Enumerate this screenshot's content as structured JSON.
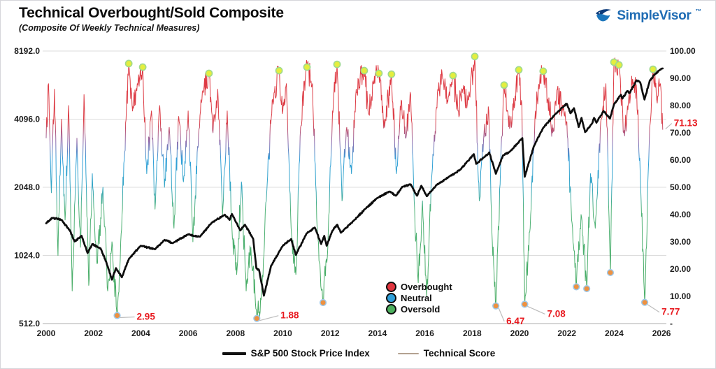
{
  "header": {
    "title": "Technical Overbought/Sold Composite",
    "subtitle": "(Composite Of Weekly Technical Measures)",
    "brand": {
      "name": "SimpleVisor",
      "tm": "™",
      "color": "#1f6cb4"
    }
  },
  "legend": {
    "zones": [
      {
        "label": "Overbought",
        "color": "#e0353f"
      },
      {
        "label": "Neutral",
        "color": "#2f9fd9"
      },
      {
        "label": "Oversold",
        "color": "#4db05e"
      }
    ],
    "series": [
      {
        "label": "S&P 500 Stock Price Index",
        "color": "#111111",
        "weight": "thick"
      },
      {
        "label": "Technical Score",
        "color": "#b3a291",
        "weight": "thin"
      }
    ]
  },
  "chart_data": {
    "type": "line",
    "title": "Technical Overbought/Sold Composite",
    "subtitle": "(Composite Of Weekly Technical Measures)",
    "grid": "horizontal",
    "x_axis": {
      "ticks": [
        2000,
        2002,
        2004,
        2006,
        2008,
        2010,
        2012,
        2014,
        2016,
        2018,
        2020,
        2022,
        2024,
        2026
      ],
      "range": [
        2000,
        2026.3
      ]
    },
    "y_left_axis": {
      "scale": "log2",
      "ticks": [
        [
          "8192.0",
          8192
        ],
        [
          "4096.0",
          4096
        ],
        [
          "2048.0",
          2048
        ],
        [
          "1024.0",
          1024
        ],
        [
          "512.0",
          512
        ]
      ]
    },
    "y_right_axis": {
      "scale": "linear",
      "range": [
        0,
        100
      ],
      "ticks": [
        [
          "100.00",
          100
        ],
        [
          "90.00",
          90
        ],
        [
          "80.00",
          80
        ],
        [
          "70.00",
          70
        ],
        [
          "60.00",
          60
        ],
        [
          "50.00",
          50
        ],
        [
          "40.00",
          40
        ],
        [
          "30.00",
          30
        ],
        [
          "20.00",
          20
        ],
        [
          "10.00",
          10
        ],
        [
          "-",
          0
        ]
      ]
    },
    "current_score": {
      "value": 71.13,
      "label": "71.13",
      "color": "#e8191f"
    },
    "colors": {
      "overbought": "#e0353f",
      "neutral": "#2f9fd9",
      "oversold": "#43a95c",
      "purple_blend": "#8a6cae",
      "teal_blend": "#35a6c4",
      "sp500": "#0d0d0d",
      "grid": "#dcdcdc",
      "axis_text": "#1c1c1c",
      "annotation": "#e8191f",
      "callout": "#bdbdbd",
      "peak_marker_fill": "#e4ee3e",
      "peak_marker_ring": "#9fd98f",
      "trough_marker_fill": "#ee9140",
      "trough_marker_ring": "#9fc8e8"
    },
    "sp500_keypoints": [
      [
        2000.0,
        1420
      ],
      [
        2000.25,
        1500
      ],
      [
        2000.65,
        1470
      ],
      [
        2001.0,
        1320
      ],
      [
        2001.2,
        1180
      ],
      [
        2001.5,
        1250
      ],
      [
        2001.75,
        1050
      ],
      [
        2001.95,
        1150
      ],
      [
        2002.3,
        1100
      ],
      [
        2002.55,
        950
      ],
      [
        2002.78,
        800
      ],
      [
        2002.95,
        900
      ],
      [
        2003.2,
        820
      ],
      [
        2003.5,
        990
      ],
      [
        2004.0,
        1130
      ],
      [
        2004.6,
        1090
      ],
      [
        2005.0,
        1200
      ],
      [
        2005.35,
        1160
      ],
      [
        2006.0,
        1270
      ],
      [
        2006.5,
        1240
      ],
      [
        2007.0,
        1430
      ],
      [
        2007.55,
        1550
      ],
      [
        2007.75,
        1470
      ],
      [
        2007.85,
        1560
      ],
      [
        2008.2,
        1320
      ],
      [
        2008.4,
        1400
      ],
      [
        2008.75,
        1210
      ],
      [
        2008.88,
        900
      ],
      [
        2009.0,
        880
      ],
      [
        2009.2,
        680
      ],
      [
        2009.5,
        920
      ],
      [
        2010.0,
        1130
      ],
      [
        2010.35,
        1210
      ],
      [
        2010.55,
        1030
      ],
      [
        2011.0,
        1280
      ],
      [
        2011.35,
        1360
      ],
      [
        2011.62,
        1150
      ],
      [
        2011.75,
        1250
      ],
      [
        2011.85,
        1130
      ],
      [
        2012.1,
        1320
      ],
      [
        2012.3,
        1400
      ],
      [
        2012.45,
        1290
      ],
      [
        2013.0,
        1460
      ],
      [
        2013.5,
        1650
      ],
      [
        2014.0,
        1840
      ],
      [
        2014.5,
        1960
      ],
      [
        2014.78,
        1880
      ],
      [
        2015.05,
        2060
      ],
      [
        2015.4,
        2110
      ],
      [
        2015.67,
        1880
      ],
      [
        2015.85,
        2080
      ],
      [
        2016.08,
        1870
      ],
      [
        2016.5,
        2100
      ],
      [
        2017.0,
        2270
      ],
      [
        2017.5,
        2450
      ],
      [
        2018.07,
        2870
      ],
      [
        2018.17,
        2600
      ],
      [
        2018.5,
        2780
      ],
      [
        2018.72,
        2920
      ],
      [
        2019.0,
        2350
      ],
      [
        2019.3,
        2830
      ],
      [
        2019.6,
        2950
      ],
      [
        2020.12,
        3380
      ],
      [
        2020.22,
        2280
      ],
      [
        2020.6,
        3100
      ],
      [
        2021.0,
        3750
      ],
      [
        2021.5,
        4300
      ],
      [
        2021.9,
        4700
      ],
      [
        2022.0,
        4790
      ],
      [
        2022.15,
        4350
      ],
      [
        2022.3,
        4580
      ],
      [
        2022.5,
        3780
      ],
      [
        2022.62,
        4150
      ],
      [
        2022.77,
        3590
      ],
      [
        2023.05,
        3900
      ],
      [
        2023.15,
        4150
      ],
      [
        2023.25,
        3950
      ],
      [
        2023.55,
        4450
      ],
      [
        2023.82,
        4120
      ],
      [
        2024.0,
        4780
      ],
      [
        2024.28,
        5250
      ],
      [
        2024.35,
        5050
      ],
      [
        2024.55,
        5450
      ],
      [
        2024.65,
        5350
      ],
      [
        2024.95,
        6080
      ],
      [
        2025.1,
        5950
      ],
      [
        2025.28,
        5000
      ],
      [
        2025.5,
        6050
      ],
      [
        2025.7,
        6450
      ],
      [
        2025.9,
        6720
      ],
      [
        2026.05,
        6860
      ]
    ],
    "score_anchors": [
      [
        2000.0,
        68,
        0
      ],
      [
        2000.1,
        88,
        0
      ],
      [
        2000.22,
        48,
        0
      ],
      [
        2000.35,
        86,
        0
      ],
      [
        2000.5,
        25,
        0
      ],
      [
        2000.65,
        75,
        0
      ],
      [
        2000.8,
        38,
        0
      ],
      [
        2000.95,
        80,
        0
      ],
      [
        2001.1,
        12,
        0
      ],
      [
        2001.3,
        68,
        0
      ],
      [
        2001.45,
        28,
        0
      ],
      [
        2001.6,
        84,
        0
      ],
      [
        2001.8,
        14,
        0
      ],
      [
        2001.95,
        55,
        0
      ],
      [
        2002.15,
        22,
        0
      ],
      [
        2002.4,
        50,
        0
      ],
      [
        2002.6,
        12,
        0
      ],
      [
        2002.78,
        30,
        0
      ],
      [
        2003.0,
        2.95,
        2,
        "2.95",
        28,
        6
      ],
      [
        2003.15,
        30,
        0
      ],
      [
        2003.3,
        60,
        0
      ],
      [
        2003.49,
        95.4,
        1
      ],
      [
        2003.65,
        78,
        0
      ],
      [
        2003.85,
        88,
        0
      ],
      [
        2004.08,
        94.1,
        1
      ],
      [
        2004.25,
        55,
        0
      ],
      [
        2004.45,
        78,
        0
      ],
      [
        2004.6,
        42,
        0
      ],
      [
        2004.8,
        80,
        0
      ],
      [
        2005.0,
        50,
        0
      ],
      [
        2005.2,
        72,
        0
      ],
      [
        2005.4,
        35,
        0
      ],
      [
        2005.6,
        76,
        0
      ],
      [
        2005.8,
        52,
        0
      ],
      [
        2006.0,
        78,
        0
      ],
      [
        2006.2,
        30,
        0
      ],
      [
        2006.4,
        65,
        0
      ],
      [
        2006.6,
        85,
        0
      ],
      [
        2006.88,
        91.8,
        1
      ],
      [
        2007.05,
        70,
        0
      ],
      [
        2007.25,
        86,
        0
      ],
      [
        2007.45,
        40,
        0
      ],
      [
        2007.65,
        78,
        0
      ],
      [
        2007.85,
        35,
        0
      ],
      [
        2008.05,
        18,
        0
      ],
      [
        2008.25,
        52,
        0
      ],
      [
        2008.45,
        12,
        0
      ],
      [
        2008.65,
        28,
        0
      ],
      [
        2008.9,
        1.88,
        2,
        "1.88",
        34,
        0
      ],
      [
        2009.1,
        12,
        0
      ],
      [
        2009.3,
        45,
        0
      ],
      [
        2009.55,
        82,
        0
      ],
      [
        2009.84,
        92.8,
        1
      ],
      [
        2010.0,
        78,
        0
      ],
      [
        2010.15,
        88,
        0
      ],
      [
        2010.35,
        35,
        0
      ],
      [
        2010.55,
        18,
        0
      ],
      [
        2010.75,
        72,
        0
      ],
      [
        2010.95,
        90,
        0
      ],
      [
        2011.02,
        94.1,
        1
      ],
      [
        2011.25,
        88,
        0
      ],
      [
        2011.45,
        35,
        0
      ],
      [
        2011.7,
        7.7,
        2
      ],
      [
        2011.9,
        28,
        0
      ],
      [
        2012.1,
        78,
        0
      ],
      [
        2012.29,
        95.1,
        1
      ],
      [
        2012.5,
        45,
        0
      ],
      [
        2012.7,
        72,
        0
      ],
      [
        2012.9,
        55,
        0
      ],
      [
        2013.1,
        86,
        0
      ],
      [
        2013.44,
        92.8,
        1
      ],
      [
        2013.6,
        78,
        0
      ],
      [
        2013.85,
        88,
        0
      ],
      [
        2014.06,
        91.8,
        1
      ],
      [
        2014.3,
        72,
        0
      ],
      [
        2014.59,
        91.5,
        1
      ],
      [
        2014.8,
        55,
        0
      ],
      [
        2015.0,
        82,
        0
      ],
      [
        2015.2,
        68,
        0
      ],
      [
        2015.4,
        84,
        0
      ],
      [
        2015.55,
        45,
        0
      ],
      [
        2015.72,
        15,
        0
      ],
      [
        2015.9,
        45,
        0
      ],
      [
        2016.08,
        10,
        0
      ],
      [
        2016.3,
        55,
        0
      ],
      [
        2016.55,
        86,
        0
      ],
      [
        2016.75,
        90,
        0
      ],
      [
        2016.95,
        82,
        0
      ],
      [
        2017.19,
        91,
        1
      ],
      [
        2017.4,
        78,
        0
      ],
      [
        2017.6,
        86,
        0
      ],
      [
        2017.85,
        82,
        0
      ],
      [
        2018.11,
        98,
        1
      ],
      [
        2018.3,
        45,
        0
      ],
      [
        2018.5,
        70,
        0
      ],
      [
        2018.7,
        78,
        0
      ],
      [
        2018.85,
        30,
        0
      ],
      [
        2019.0,
        6.47,
        2,
        "6.47",
        15,
        26
      ],
      [
        2019.2,
        58,
        0
      ],
      [
        2019.35,
        87.5,
        1
      ],
      [
        2019.6,
        72,
        0
      ],
      [
        2019.97,
        93.1,
        1
      ],
      [
        2020.1,
        80,
        0
      ],
      [
        2020.22,
        7.08,
        2,
        "7.08",
        32,
        18
      ],
      [
        2020.45,
        35,
        0
      ],
      [
        2020.65,
        75,
        0
      ],
      [
        2020.85,
        88,
        0
      ],
      [
        2021.0,
        92.6,
        1
      ],
      [
        2021.2,
        82,
        0
      ],
      [
        2021.4,
        70,
        0
      ],
      [
        2021.6,
        86,
        0
      ],
      [
        2021.8,
        78,
        0
      ],
      [
        2022.0,
        74,
        0
      ],
      [
        2022.2,
        38,
        0
      ],
      [
        2022.4,
        13.5,
        2
      ],
      [
        2022.6,
        40,
        0
      ],
      [
        2022.84,
        12.8,
        2
      ],
      [
        2023.0,
        55,
        0
      ],
      [
        2023.2,
        35,
        0
      ],
      [
        2023.45,
        75,
        0
      ],
      [
        2023.65,
        88,
        0
      ],
      [
        2023.84,
        18.7,
        2
      ],
      [
        2023.99,
        95.9,
        1
      ],
      [
        2024.2,
        94.9,
        1
      ],
      [
        2024.4,
        70,
        0
      ],
      [
        2024.6,
        82,
        0
      ],
      [
        2024.8,
        88,
        0
      ],
      [
        2024.95,
        85,
        0
      ],
      [
        2025.1,
        55,
        0
      ],
      [
        2025.29,
        7.77,
        2,
        "7.77",
        24,
        18
      ],
      [
        2025.5,
        72,
        0
      ],
      [
        2025.64,
        93.3,
        1
      ],
      [
        2025.8,
        82,
        0
      ],
      [
        2025.95,
        88,
        0
      ],
      [
        2026.05,
        71.13,
        0,
        "71.13",
        16,
        -5
      ]
    ]
  }
}
